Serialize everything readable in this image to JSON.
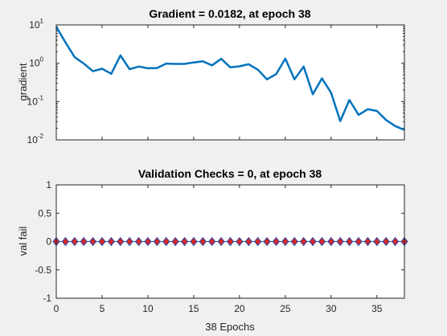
{
  "chart_data": [
    {
      "type": "line",
      "title": "Gradient = 0.0182, at epoch 38",
      "xlabel": "",
      "ylabel": "gradient",
      "xlim": [
        0,
        38
      ],
      "yscale": "log",
      "ylim": [
        0.01,
        10
      ],
      "y_ticks": [
        {
          "base": "10",
          "exp": "1",
          "value": 10
        },
        {
          "base": "10",
          "exp": "0",
          "value": 1
        },
        {
          "base": "10",
          "exp": "-1",
          "value": 0.1
        },
        {
          "base": "10",
          "exp": "-2",
          "value": 0.01
        }
      ],
      "x_ticks": [
        0,
        5,
        10,
        15,
        20,
        25,
        30,
        35
      ],
      "show_x_tick_labels": false,
      "grid": false,
      "series": [
        {
          "color": "#0072BD",
          "x": [
            0,
            1,
            2,
            3,
            4,
            5,
            6,
            7,
            8,
            9,
            10,
            11,
            12,
            13,
            14,
            15,
            16,
            17,
            18,
            19,
            20,
            21,
            22,
            23,
            24,
            25,
            26,
            27,
            28,
            29,
            30,
            31,
            32,
            33,
            34,
            35,
            36,
            37,
            38
          ],
          "y": [
            9.0,
            3.5,
            1.45,
            0.98,
            0.62,
            0.72,
            0.53,
            1.6,
            0.7,
            0.82,
            0.74,
            0.75,
            0.98,
            0.96,
            0.96,
            1.05,
            1.12,
            0.88,
            1.3,
            0.78,
            0.83,
            0.94,
            0.68,
            0.38,
            0.52,
            1.32,
            0.38,
            0.82,
            0.155,
            0.4,
            0.17,
            0.031,
            0.11,
            0.045,
            0.063,
            0.057,
            0.033,
            0.023,
            0.0182
          ]
        }
      ]
    },
    {
      "type": "scatter",
      "title": "Validation Checks = 0, at epoch 38",
      "xlabel": "38 Epochs",
      "ylabel": "val fail",
      "xlim": [
        0,
        38
      ],
      "ylim": [
        -1,
        1
      ],
      "y_ticks": [
        "1",
        "0.5",
        "0",
        "-0.5",
        "-1"
      ],
      "x_ticks": [
        "0",
        "5",
        "10",
        "15",
        "20",
        "25",
        "30",
        "35"
      ],
      "grid": false,
      "marker": "diamond",
      "marker_face_color": "#d62728",
      "marker_edge_color": "#1f4eb4",
      "series": [
        {
          "x": [
            0,
            1,
            2,
            3,
            4,
            5,
            6,
            7,
            8,
            9,
            10,
            11,
            12,
            13,
            14,
            15,
            16,
            17,
            18,
            19,
            20,
            21,
            22,
            23,
            24,
            25,
            26,
            27,
            28,
            29,
            30,
            31,
            32,
            33,
            34,
            35,
            36,
            37,
            38
          ],
          "y": [
            0,
            0,
            0,
            0,
            0,
            0,
            0,
            0,
            0,
            0,
            0,
            0,
            0,
            0,
            0,
            0,
            0,
            0,
            0,
            0,
            0,
            0,
            0,
            0,
            0,
            0,
            0,
            0,
            0,
            0,
            0,
            0,
            0,
            0,
            0,
            0,
            0,
            0,
            0
          ]
        }
      ]
    }
  ]
}
